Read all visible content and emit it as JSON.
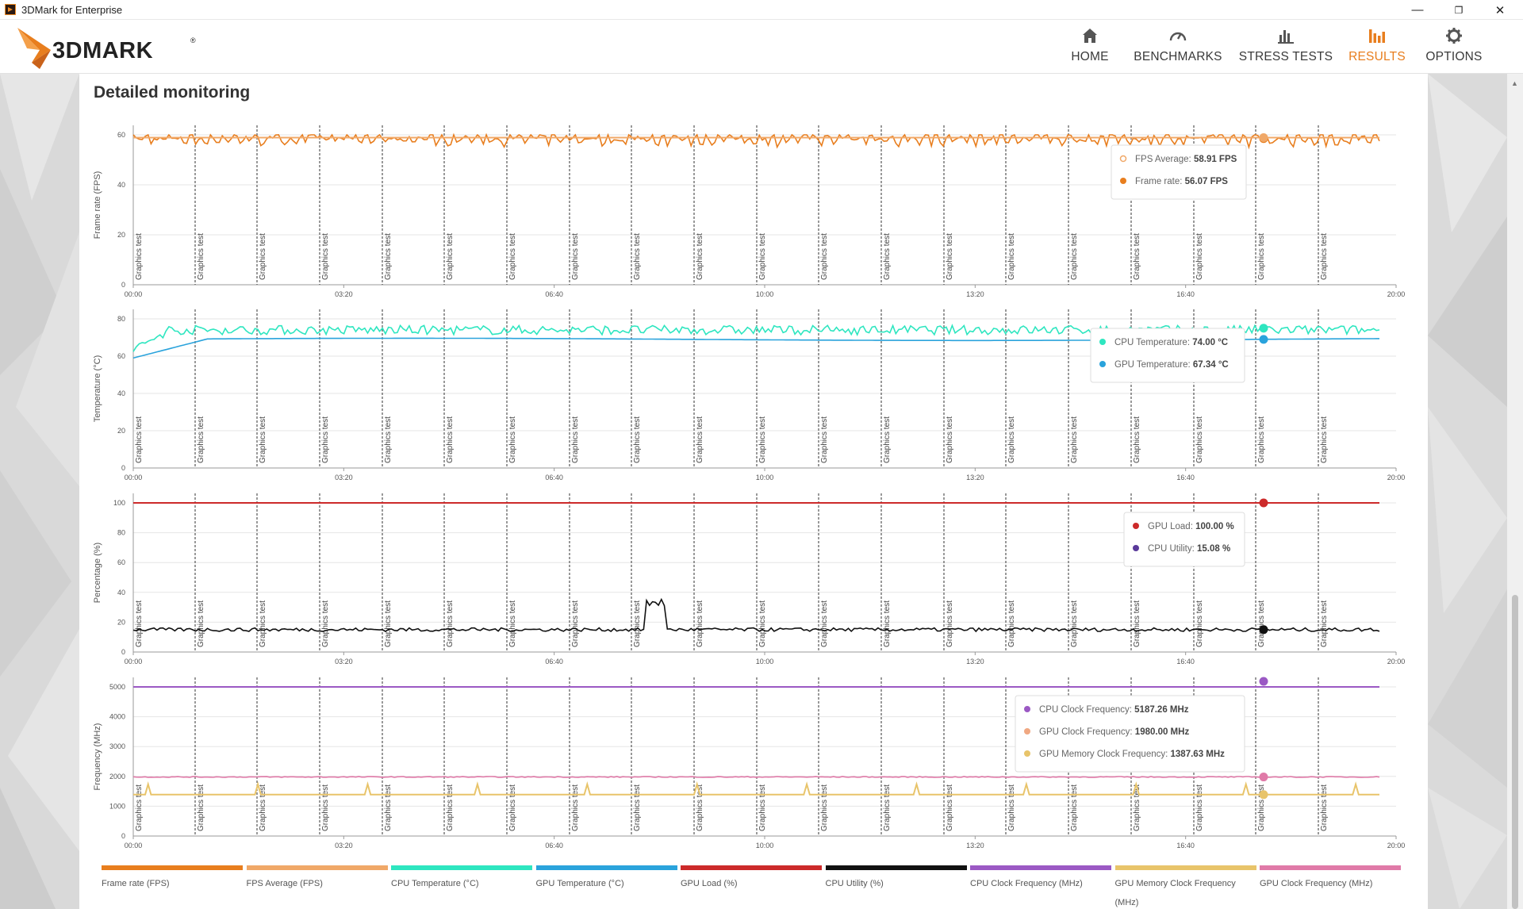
{
  "window": {
    "title": "3DMark for Enterprise",
    "controls": [
      "—",
      "❐",
      "✕"
    ]
  },
  "nav": [
    {
      "label": "HOME",
      "icon": "home-icon"
    },
    {
      "label": "BENCHMARKS",
      "icon": "gauge-icon"
    },
    {
      "label": "STRESS TESTS",
      "icon": "bars-icon"
    },
    {
      "label": "RESULTS",
      "icon": "chart-icon",
      "active": true
    },
    {
      "label": "OPTIONS",
      "icon": "gear-icon"
    }
  ],
  "brand": {
    "name": "3DMARK",
    "accent": "#e87e1e"
  },
  "page": {
    "title": "Detailed monitoring"
  },
  "time_labels": [
    "00:00",
    "03:20",
    "06:40",
    "10:00",
    "13:20",
    "16:40",
    "20:00"
  ],
  "marker_label": "Graphics test",
  "chart_data": [
    {
      "type": "line",
      "ylabel": "Frame rate (FPS)",
      "ylim": [
        0,
        60
      ],
      "yticks": [
        0,
        20,
        40,
        60
      ],
      "series": [
        {
          "name": "Frame rate (FPS)",
          "color": "#e87e1e",
          "mean": 58.5,
          "amplitude": 2.5
        },
        {
          "name": "FPS Average (FPS)",
          "color": "#f0a868",
          "mean": 58.9,
          "amplitude": 0
        }
      ],
      "tooltip": [
        {
          "label": "FPS Average:",
          "value": "58.91 FPS",
          "color": "#f0a868",
          "hollow": true
        },
        {
          "label": "Frame rate:",
          "value": "56.07 FPS",
          "color": "#e87e1e"
        }
      ]
    },
    {
      "type": "line",
      "ylabel": "Temperature (°C)",
      "ylim": [
        0,
        80
      ],
      "yticks": [
        0,
        20,
        40,
        60,
        80
      ],
      "series": [
        {
          "name": "CPU Temperature (°C)",
          "color": "#2ee6c0",
          "mean": 75,
          "amplitude": 2.5
        },
        {
          "name": "GPU Temperature (°C)",
          "color": "#2aa3dc",
          "mean": 69,
          "amplitude": 0.4
        }
      ],
      "tooltip": [
        {
          "label": "CPU Temperature:",
          "value": "74.00 °C",
          "color": "#2ee6c0"
        },
        {
          "label": "GPU Temperature:",
          "value": "67.34 °C",
          "color": "#2aa3dc"
        }
      ]
    },
    {
      "type": "line",
      "ylabel": "Percentage (%)",
      "ylim": [
        0,
        100
      ],
      "yticks": [
        0,
        20,
        40,
        60,
        80,
        100
      ],
      "series": [
        {
          "name": "GPU Load (%)",
          "color": "#cc2a2a",
          "mean": 100,
          "amplitude": 0
        },
        {
          "name": "CPU Utility (%)",
          "color": "#111111",
          "mean": 15,
          "amplitude": 1.2
        }
      ],
      "tooltip": [
        {
          "label": "GPU Load:",
          "value": "100.00 %",
          "color": "#cc2a2a"
        },
        {
          "label": "CPU Utility:",
          "value": "15.08 %",
          "color": "#5a3a9a"
        }
      ]
    },
    {
      "type": "line",
      "ylabel": "Frequency (MHz)",
      "ylim": [
        0,
        5000
      ],
      "yticks": [
        0,
        1000,
        2000,
        3000,
        4000,
        5000
      ],
      "series": [
        {
          "name": "CPU Clock Frequency (MHz)",
          "color": "#9b59c4",
          "mean": 5187,
          "amplitude": 0
        },
        {
          "name": "GPU Clock Frequency (MHz)",
          "color": "#e07aa8",
          "mean": 1980,
          "amplitude": 15
        },
        {
          "name": "GPU Memory Clock Frequency (MHz)",
          "color": "#e8c46a",
          "mean": 1388,
          "amplitude": 0
        }
      ],
      "tooltip": [
        {
          "label": "CPU Clock Frequency:",
          "value": "5187.26 MHz",
          "color": "#9b59c4"
        },
        {
          "label": "GPU Clock Frequency:",
          "value": "1980.00 MHz",
          "color": "#f0a882"
        },
        {
          "label": "GPU Memory Clock Frequency:",
          "value": "1387.63 MHz",
          "color": "#e8c46a"
        }
      ]
    }
  ],
  "legend": [
    {
      "label": "Frame rate (FPS)",
      "color": "#e87e1e"
    },
    {
      "label": "FPS Average (FPS)",
      "color": "#f0a868"
    },
    {
      "label": "CPU Temperature (°C)",
      "color": "#2ee6c0"
    },
    {
      "label": "GPU Temperature (°C)",
      "color": "#2aa3dc"
    },
    {
      "label": "GPU Load (%)",
      "color": "#cc2a2a"
    },
    {
      "label": "CPU Utility (%)",
      "color": "#111111"
    },
    {
      "label": "CPU Clock Frequency (MHz)",
      "color": "#9b59c4"
    },
    {
      "label": "GPU Memory Clock Frequency (MHz)",
      "color": "#e8c46a"
    },
    {
      "label": "GPU Clock Frequency (MHz)",
      "color": "#e07aa8"
    }
  ]
}
